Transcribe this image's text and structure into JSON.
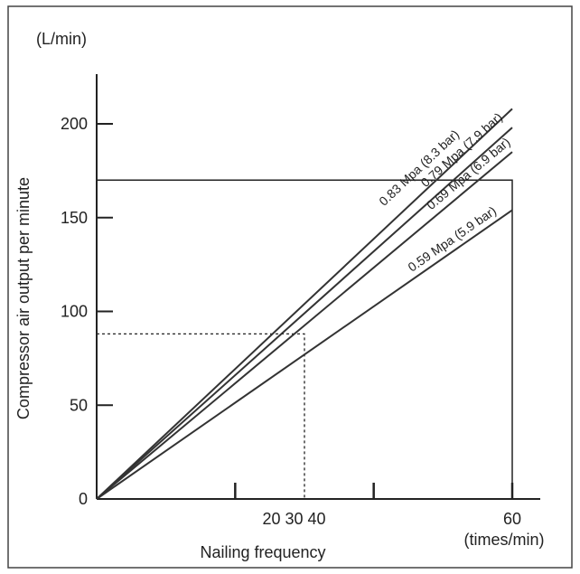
{
  "chart_data": {
    "type": "line",
    "ylabel": "Compressor air output per minute",
    "y_unit": "(L/min)",
    "xlabel": "Nailing frequency",
    "x_unit": "(times/min)",
    "xlim": [
      0,
      60
    ],
    "ylim": [
      0,
      200
    ],
    "y_ticks": [
      0,
      50,
      100,
      150,
      200
    ],
    "y_tick_labels": [
      "0",
      "50",
      "100",
      "150",
      "200"
    ],
    "x_tick_marks": [
      20,
      40,
      60
    ],
    "x_tick_labels": [
      {
        "text": "20 30 40",
        "at": 28.5
      },
      {
        "text": "60",
        "at": 60
      }
    ],
    "series": [
      {
        "name": "0.83 Mpa (8.3 bar)",
        "x": [
          0,
          60
        ],
        "y": [
          0,
          208
        ]
      },
      {
        "name": "0.79 Mpa (7.9 bar)",
        "x": [
          0,
          60
        ],
        "y": [
          0,
          198
        ]
      },
      {
        "name": "0.69 Mpa (6.9 bar)",
        "x": [
          0,
          60
        ],
        "y": [
          0,
          185
        ]
      },
      {
        "name": "0.59 Mpa (5.9 bar)",
        "x": [
          0,
          60
        ],
        "y": [
          0,
          154
        ]
      }
    ],
    "reference_box": {
      "x": 60,
      "y": 170
    },
    "reference_dashed": {
      "x": 30,
      "y": 88
    },
    "grid": false,
    "legend": "none"
  }
}
